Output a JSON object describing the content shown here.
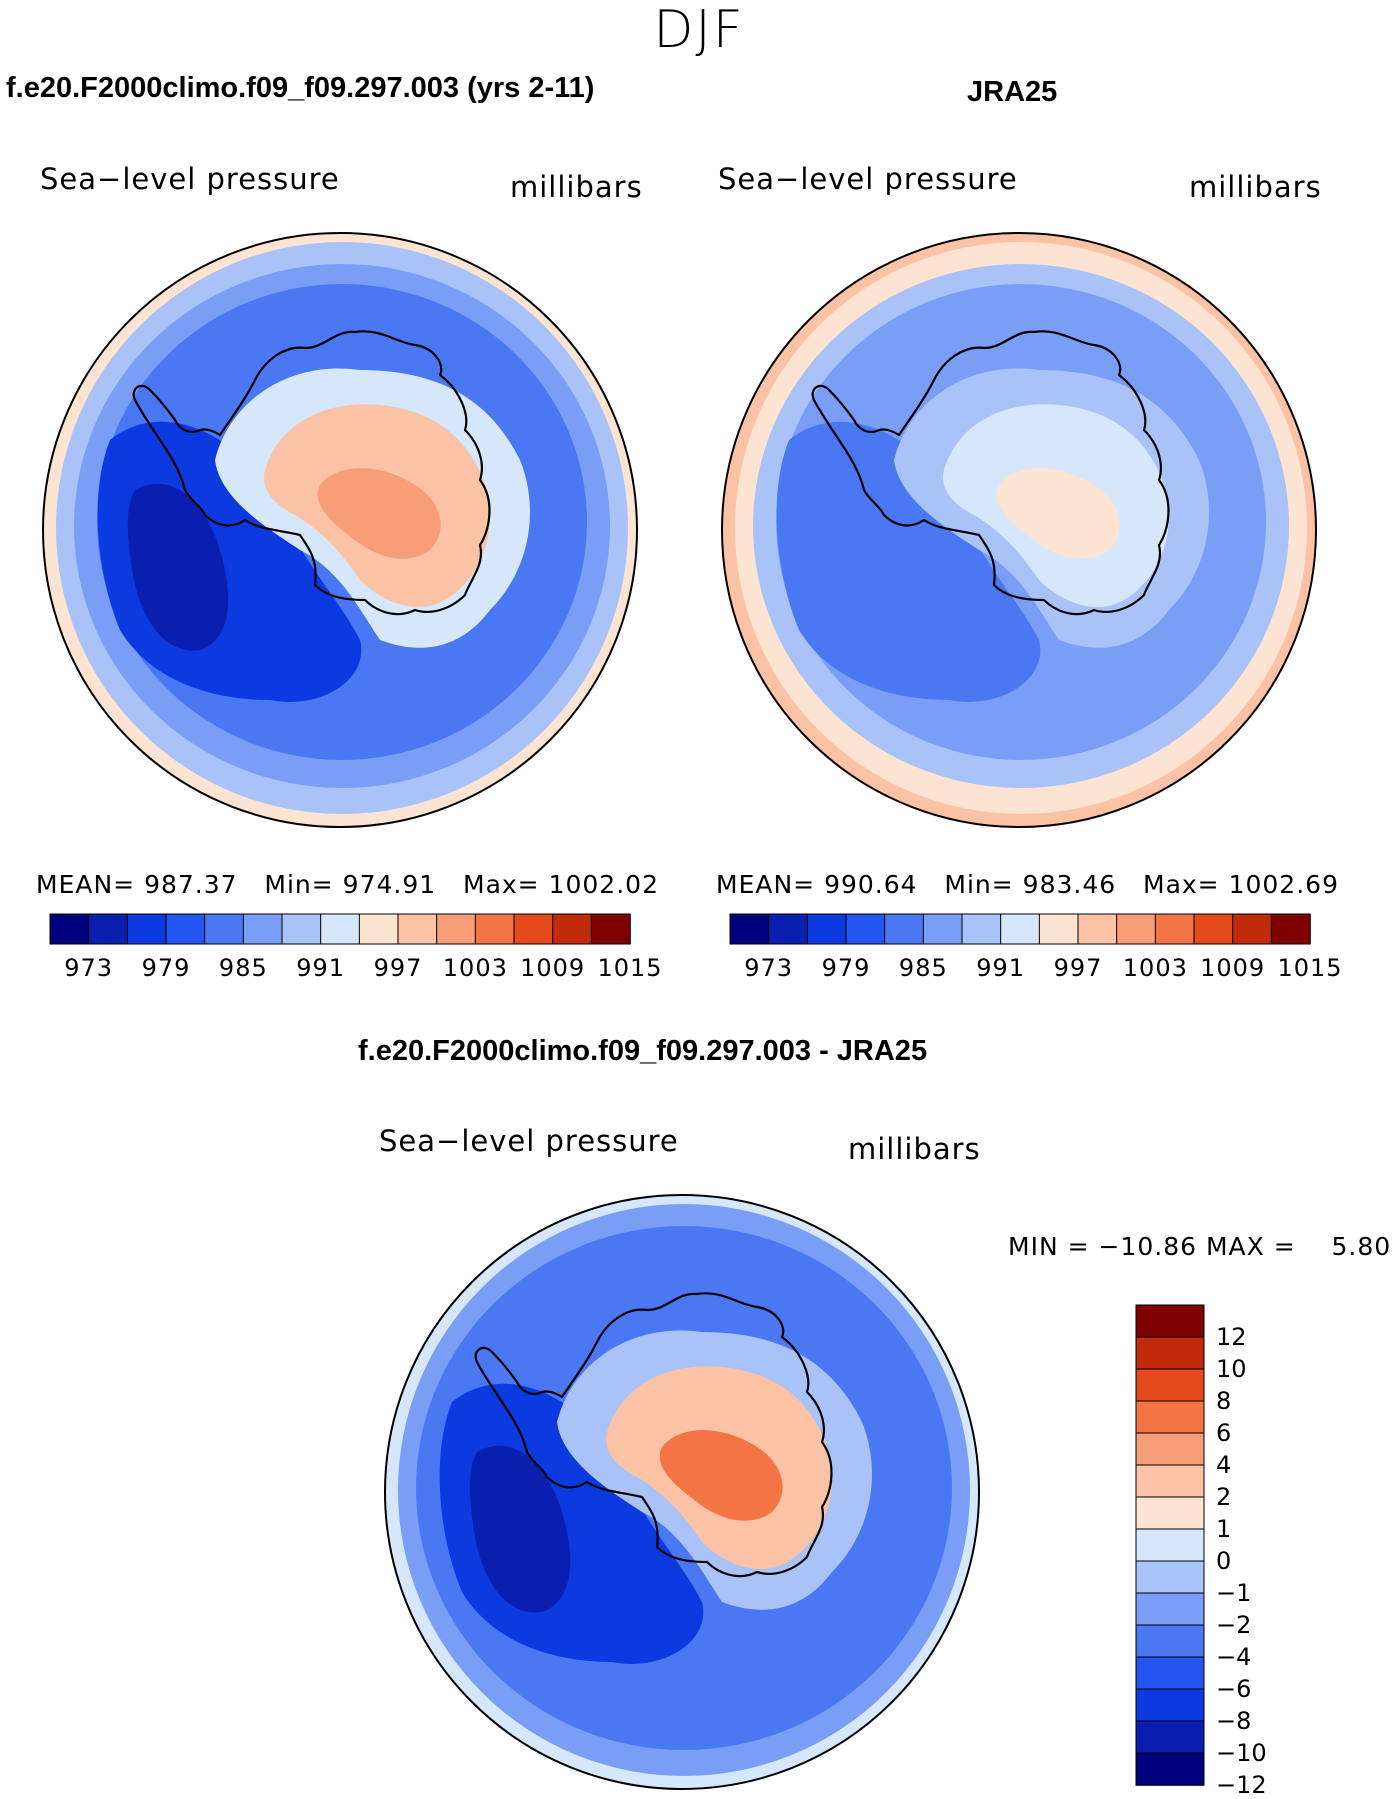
{
  "page_title": "DJF",
  "panels": [
    {
      "title": "f.e20.F2000climo.f09_f09.297.003 (yrs 2-11)",
      "left_label": "Sea−level pressure",
      "right_label": "millibars",
      "stats": {
        "mean_label": "MEAN=",
        "mean": "987.37",
        "min_label": "Min=",
        "min": "974.91",
        "max_label": "Max=",
        "max": "1002.02"
      },
      "colorbar_ticks": [
        "973",
        "979",
        "985",
        "991",
        "997",
        "1003",
        "1009",
        "1015"
      ]
    },
    {
      "title": "JRA25",
      "left_label": "Sea−level pressure",
      "right_label": "millibars",
      "stats": {
        "mean_label": "MEAN=",
        "mean": "990.64",
        "min_label": "Min=",
        "min": "983.46",
        "max_label": "Max=",
        "max": "1002.69"
      },
      "colorbar_ticks": [
        "973",
        "979",
        "985",
        "991",
        "997",
        "1003",
        "1009",
        "1015"
      ]
    },
    {
      "title": "f.e20.F2000climo.f09_f09.297.003 - JRA25",
      "left_label": "Sea−level pressure",
      "right_label": "millibars",
      "minmax": {
        "min_label": "MIN =",
        "min": "−10.86",
        "max_label": "MAX =",
        "max": "5.80"
      },
      "colorbar_ticks": [
        "12",
        "10",
        "8",
        "6",
        "4",
        "2",
        "1",
        "0",
        "−1",
        "−2",
        "−4",
        "−6",
        "−8",
        "−10",
        "−12"
      ]
    }
  ],
  "chart_data": [
    {
      "type": "heatmap",
      "title": "f.e20.F2000climo.f09_f09.297.003 (yrs 2-11)",
      "variable": "Sea−level pressure",
      "units": "millibars",
      "projection": "south polar stereographic",
      "mean": 987.37,
      "min": 974.91,
      "max": 1002.02,
      "contour_levels": [
        973,
        976,
        979,
        982,
        985,
        988,
        991,
        994,
        997,
        1000,
        1003,
        1006,
        1009,
        1012,
        1015
      ],
      "palette": [
        "#00007f",
        "#0a1fb0",
        "#0d3ae0",
        "#2555f0",
        "#4a78f2",
        "#7a9ef5",
        "#a9c2f8",
        "#d6e6fb",
        "#fde4d2",
        "#fbc2a6",
        "#f79d78",
        "#f37445",
        "#e54a1c",
        "#c12a0a",
        "#7f0000"
      ],
      "field": [
        {
          "region": "outer-ring",
          "level_index": 8
        },
        {
          "region": "ring-1",
          "level_index": 6
        },
        {
          "region": "ring-2",
          "level_index": 5
        },
        {
          "region": "ring-3",
          "level_index": 4
        },
        {
          "region": "trough-west",
          "level_index": 2
        },
        {
          "region": "trough-core",
          "level_index": 1
        },
        {
          "region": "ice-edge",
          "level_index": 7
        },
        {
          "region": "plateau",
          "level_index": 9
        },
        {
          "region": "plateau-core",
          "level_index": 10
        }
      ]
    },
    {
      "type": "heatmap",
      "title": "JRA25",
      "variable": "Sea−level pressure",
      "units": "millibars",
      "projection": "south polar stereographic",
      "mean": 990.64,
      "min": 983.46,
      "max": 1002.69,
      "contour_levels": [
        973,
        976,
        979,
        982,
        985,
        988,
        991,
        994,
        997,
        1000,
        1003,
        1006,
        1009,
        1012,
        1015
      ],
      "palette": [
        "#00007f",
        "#0a1fb0",
        "#0d3ae0",
        "#2555f0",
        "#4a78f2",
        "#7a9ef5",
        "#a9c2f8",
        "#d6e6fb",
        "#fde4d2",
        "#fbc2a6",
        "#f79d78",
        "#f37445",
        "#e54a1c",
        "#c12a0a",
        "#7f0000"
      ],
      "field": [
        {
          "region": "outer-ring",
          "level_index": 9
        },
        {
          "region": "ring-1",
          "level_index": 8
        },
        {
          "region": "ring-2",
          "level_index": 6
        },
        {
          "region": "ring-3",
          "level_index": 5
        },
        {
          "region": "trough-west",
          "level_index": 4
        },
        {
          "region": "trough-core",
          "level_index": 4
        },
        {
          "region": "ice-edge",
          "level_index": 6
        },
        {
          "region": "plateau",
          "level_index": 7
        },
        {
          "region": "plateau-core",
          "level_index": 8
        }
      ]
    },
    {
      "type": "heatmap",
      "title": "f.e20.F2000climo.f09_f09.297.003 - JRA25",
      "variable": "Sea−level pressure",
      "units": "millibars",
      "projection": "south polar stereographic",
      "min": -10.86,
      "max": 5.8,
      "contour_levels": [
        -12,
        -10,
        -8,
        -6,
        -4,
        -2,
        -1,
        0,
        1,
        2,
        4,
        6,
        8,
        10,
        12
      ],
      "palette": [
        "#00007f",
        "#0a1fb0",
        "#0d3ae0",
        "#2555f0",
        "#4a78f2",
        "#7a9ef5",
        "#a9c2f8",
        "#d6e6fb",
        "#fde4d2",
        "#fbc2a6",
        "#f79d78",
        "#f37445",
        "#e54a1c",
        "#c12a0a",
        "#7f0000"
      ],
      "field": [
        {
          "region": "outer-ring",
          "level_index": 7
        },
        {
          "region": "ring-1",
          "level_index": 5
        },
        {
          "region": "ring-2",
          "level_index": 4
        },
        {
          "region": "ring-3",
          "level_index": 4
        },
        {
          "region": "trough-west",
          "level_index": 2
        },
        {
          "region": "trough-core",
          "level_index": 1
        },
        {
          "region": "ice-edge",
          "level_index": 6
        },
        {
          "region": "plateau",
          "level_index": 9
        },
        {
          "region": "plateau-core",
          "level_index": 11
        }
      ]
    }
  ]
}
